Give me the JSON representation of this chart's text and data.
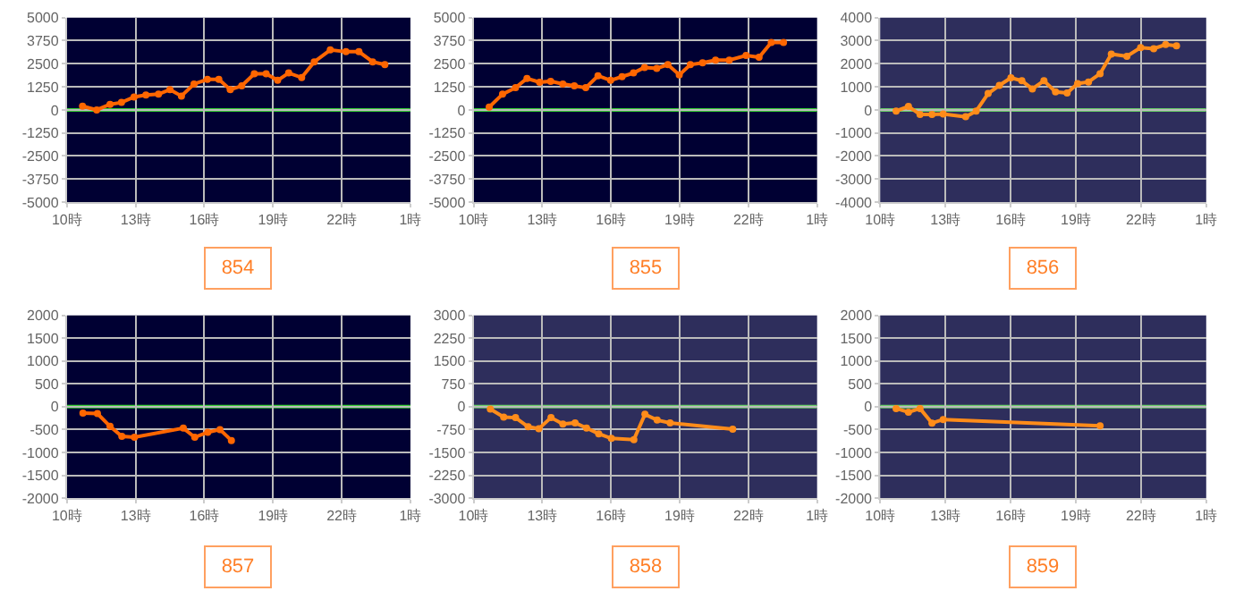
{
  "chart_data": [
    {
      "type": "line",
      "annotations": [
        "854"
      ],
      "x": [
        "--01-01T10:41",
        "--01-01T11:18",
        "--01-01T11:53",
        "--01-01T12:23",
        "--01-01T12:56",
        "--01-01T13:27",
        "--01-01T14:00",
        "--01-01T14:30",
        "--01-01T15:00",
        "--01-01T15:33",
        "--01-01T16:08",
        "--01-01T16:38",
        "--01-01T17:08",
        "--01-01T17:38",
        "--01-01T18:11",
        "--01-01T18:42",
        "--01-01T19:12",
        "--01-01T19:41",
        "--01-01T20:15",
        "--01-01T20:48",
        "--01-01T21:30",
        "--01-01T22:11",
        "--01-01T22:45",
        "--01-01T23:21",
        "--01-01T23:53"
      ],
      "series": [
        {
          "color": "#ff6600",
          "values": [
            200,
            0,
            300,
            400,
            700,
            800,
            850,
            1100,
            750,
            1400,
            1650,
            1650,
            1100,
            1300,
            1950,
            1950,
            1600,
            2000,
            1750,
            2600,
            3250,
            3150,
            3150,
            2600,
            2450
          ]
        }
      ],
      "xlim": [
        "--01-01T10:00",
        "--01-02T01:00"
      ],
      "xticks": [
        {
          "value": "--01-01T10:00",
          "label": "10時"
        },
        {
          "value": "--01-01T13:00",
          "label": "13時"
        },
        {
          "value": "--01-01T16:00",
          "label": "16時"
        },
        {
          "value": "--01-01T19:00",
          "label": "19時"
        },
        {
          "value": "--01-01T22:00",
          "label": "22時"
        },
        {
          "value": "--01-02T01:00",
          "label": "1時"
        }
      ],
      "ylim": [
        -5000,
        5000
      ],
      "yticks": [
        -5000,
        -3750,
        -2500,
        -1250,
        0,
        1250,
        2500,
        3750,
        5000
      ],
      "ref_lines": [
        {
          "axis": "y",
          "value": 0,
          "color": "#33cc33"
        }
      ],
      "grid": true,
      "marker": "circle",
      "line_style": "solid"
    },
    {
      "type": "line",
      "annotations": [
        "855"
      ],
      "x": [
        "--01-01T10:41",
        "--01-01T11:16",
        "--01-01T11:50",
        "--01-01T12:20",
        "--01-01T12:53",
        "--01-01T13:22",
        "--01-01T13:54",
        "--01-01T14:24",
        "--01-01T14:54",
        "--01-01T15:26",
        "--01-01T15:59",
        "--01-01T16:29",
        "--01-01T16:59",
        "--01-01T17:28",
        "--01-01T18:00",
        "--01-01T18:29",
        "--01-01T18:59",
        "--01-01T19:28",
        "--01-01T20:00",
        "--01-01T20:34",
        "--01-01T21:10",
        "--01-01T21:54",
        "--01-01T22:28",
        "--01-01T23:00",
        "--01-01T23:32"
      ],
      "series": [
        {
          "color": "#ff6600",
          "values": [
            150,
            850,
            1200,
            1700,
            1500,
            1550,
            1400,
            1300,
            1200,
            1850,
            1600,
            1800,
            2000,
            2300,
            2250,
            2450,
            1900,
            2450,
            2550,
            2700,
            2700,
            2950,
            2850,
            3650,
            3650
          ]
        }
      ],
      "xlim": [
        "--01-01T10:00",
        "--01-02T01:00"
      ],
      "xticks": [
        {
          "value": "--01-01T10:00",
          "label": "10時"
        },
        {
          "value": "--01-01T13:00",
          "label": "13時"
        },
        {
          "value": "--01-01T16:00",
          "label": "16時"
        },
        {
          "value": "--01-01T19:00",
          "label": "19時"
        },
        {
          "value": "--01-01T22:00",
          "label": "22時"
        },
        {
          "value": "--01-02T01:00",
          "label": "1時"
        }
      ],
      "ylim": [
        -5000,
        5000
      ],
      "yticks": [
        -5000,
        -3750,
        -2500,
        -1250,
        0,
        1250,
        2500,
        3750,
        5000
      ],
      "ref_lines": [
        {
          "axis": "y",
          "value": 0,
          "color": "#33cc33"
        }
      ],
      "grid": true,
      "marker": "circle",
      "line_style": "solid"
    },
    {
      "type": "line",
      "annotations": [
        "856"
      ],
      "x": [
        "--01-01T10:44",
        "--01-01T11:18",
        "--01-01T11:50",
        "--01-01T12:23",
        "--01-01T12:54",
        "--01-01T13:56",
        "--01-01T14:25",
        "--01-01T14:58",
        "--01-01T15:29",
        "--01-01T16:01",
        "--01-01T16:31",
        "--01-01T17:00",
        "--01-01T17:32",
        "--01-01T18:04",
        "--01-01T18:36",
        "--01-01T19:05",
        "--01-01T19:35",
        "--01-01T20:07",
        "--01-01T20:38",
        "--01-01T21:21",
        "--01-01T21:59",
        "--01-01T22:35",
        "--01-01T23:08",
        "--01-01T23:38"
      ],
      "series": [
        {
          "color": "#ff8c1a",
          "values": [
            -50,
            150,
            -200,
            -200,
            -180,
            -300,
            -50,
            710,
            1060,
            1390,
            1260,
            910,
            1260,
            780,
            730,
            1140,
            1210,
            1570,
            2420,
            2320,
            2700,
            2650,
            2830,
            2780
          ]
        }
      ],
      "xlim": [
        "--01-01T10:00",
        "--01-02T01:00"
      ],
      "xticks": [
        {
          "value": "--01-01T10:00",
          "label": "10時"
        },
        {
          "value": "--01-01T13:00",
          "label": "13時"
        },
        {
          "value": "--01-01T16:00",
          "label": "16時"
        },
        {
          "value": "--01-01T19:00",
          "label": "19時"
        },
        {
          "value": "--01-01T22:00",
          "label": "22時"
        },
        {
          "value": "--01-02T01:00",
          "label": "1時"
        }
      ],
      "ylim": [
        -4000,
        4000
      ],
      "yticks": [
        -4000,
        -3000,
        -2000,
        -1000,
        0,
        1000,
        2000,
        3000,
        4000
      ],
      "ref_lines": [
        {
          "axis": "y",
          "value": 0,
          "color": "#66cc66"
        }
      ],
      "grid": true,
      "marker": "circle",
      "line_style": "solid"
    },
    {
      "type": "line",
      "annotations": [
        "857"
      ],
      "x": [
        "--01-01T10:42",
        "--01-01T11:20",
        "--01-01T11:53",
        "--01-01T12:24",
        "--01-01T12:57",
        "--01-01T15:05",
        "--01-01T15:35",
        "--01-01T16:09",
        "--01-01T16:41",
        "--01-01T17:11"
      ],
      "series": [
        {
          "color": "#ff6600",
          "values": [
            -140,
            -150,
            -430,
            -650,
            -670,
            -470,
            -670,
            -560,
            -500,
            -740
          ]
        }
      ],
      "xlim": [
        "--01-01T10:00",
        "--01-02T01:00"
      ],
      "xticks": [
        {
          "value": "--01-01T10:00",
          "label": "10時"
        },
        {
          "value": "--01-01T13:00",
          "label": "13時"
        },
        {
          "value": "--01-01T16:00",
          "label": "16時"
        },
        {
          "value": "--01-01T19:00",
          "label": "19時"
        },
        {
          "value": "--01-01T22:00",
          "label": "22時"
        },
        {
          "value": "--01-02T01:00",
          "label": "1時"
        }
      ],
      "ylim": [
        -2000,
        2000
      ],
      "yticks": [
        -2000,
        -1500,
        -1000,
        -500,
        0,
        500,
        1000,
        1500,
        2000
      ],
      "ref_lines": [
        {
          "axis": "y",
          "value": 0,
          "color": "#33cc33"
        }
      ],
      "grid": true,
      "marker": "circle",
      "line_style": "solid"
    },
    {
      "type": "line",
      "annotations": [
        "858"
      ],
      "x": [
        "--01-01T10:44",
        "--01-01T11:19",
        "--01-01T11:50",
        "--01-01T12:23",
        "--01-01T12:51",
        "--01-01T13:23",
        "--01-01T13:54",
        "--01-01T14:26",
        "--01-01T14:56",
        "--01-01T15:28",
        "--01-01T16:01",
        "--01-01T17:00",
        "--01-01T17:29",
        "--01-01T18:01",
        "--01-01T18:35",
        "--01-01T21:19"
      ],
      "series": [
        {
          "color": "#ff8c1a",
          "values": [
            -80,
            -340,
            -360,
            -660,
            -720,
            -360,
            -570,
            -530,
            -700,
            -890,
            -1040,
            -1080,
            -250,
            -440,
            -530,
            -740
          ]
        }
      ],
      "xlim": [
        "--01-01T10:00",
        "--01-02T01:00"
      ],
      "xticks": [
        {
          "value": "--01-01T10:00",
          "label": "10時"
        },
        {
          "value": "--01-01T13:00",
          "label": "13時"
        },
        {
          "value": "--01-01T16:00",
          "label": "16時"
        },
        {
          "value": "--01-01T19:00",
          "label": "19時"
        },
        {
          "value": "--01-01T22:00",
          "label": "22時"
        },
        {
          "value": "--01-02T01:00",
          "label": "1時"
        }
      ],
      "ylim": [
        -3000,
        3000
      ],
      "yticks": [
        -3000,
        -2250,
        -1500,
        -750,
        0,
        750,
        1500,
        2250,
        3000
      ],
      "ref_lines": [
        {
          "axis": "y",
          "value": 0,
          "color": "#66cc66"
        }
      ],
      "grid": true,
      "marker": "circle",
      "line_style": "solid"
    },
    {
      "type": "line",
      "annotations": [
        "859"
      ],
      "x": [
        "--01-01T10:44",
        "--01-01T11:18",
        "--01-01T11:50",
        "--01-01T12:23",
        "--01-01T12:54",
        "--01-01T20:07"
      ],
      "series": [
        {
          "color": "#ff8c1a",
          "values": [
            -40,
            -120,
            -40,
            -360,
            -280,
            -420
          ]
        }
      ],
      "xlim": [
        "--01-01T10:00",
        "--01-02T01:00"
      ],
      "xticks": [
        {
          "value": "--01-01T10:00",
          "label": "10時"
        },
        {
          "value": "--01-01T13:00",
          "label": "13時"
        },
        {
          "value": "--01-01T16:00",
          "label": "16時"
        },
        {
          "value": "--01-01T19:00",
          "label": "19時"
        },
        {
          "value": "--01-01T22:00",
          "label": "22時"
        },
        {
          "value": "--01-02T01:00",
          "label": "1時"
        }
      ],
      "ylim": [
        -2000,
        2000
      ],
      "yticks": [
        -2000,
        -1500,
        -1000,
        -500,
        0,
        500,
        1000,
        1500,
        2000
      ],
      "ref_lines": [
        {
          "axis": "y",
          "value": 0,
          "color": "#66cc66"
        }
      ],
      "grid": true,
      "marker": "circle",
      "line_style": "solid"
    }
  ]
}
